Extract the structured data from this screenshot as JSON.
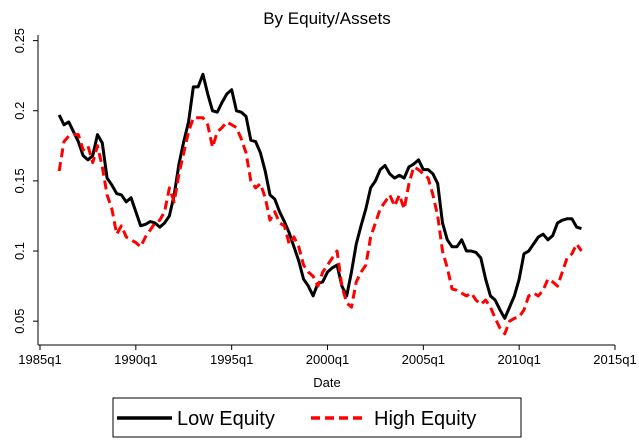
{
  "chart_data": {
    "type": "line",
    "title": "By Equity/Assets",
    "x_label": "Date",
    "x": [
      "1986q1",
      "1986q2",
      "1986q3",
      "1986q4",
      "1987q1",
      "1987q2",
      "1987q3",
      "1987q4",
      "1988q1",
      "1988q2",
      "1988q3",
      "1988q4",
      "1989q1",
      "1989q2",
      "1989q3",
      "1989q4",
      "1990q1",
      "1990q2",
      "1990q3",
      "1990q4",
      "1991q1",
      "1991q2",
      "1991q3",
      "1991q4",
      "1992q1",
      "1992q2",
      "1992q3",
      "1992q4",
      "1993q1",
      "1993q2",
      "1993q3",
      "1993q4",
      "1994q1",
      "1994q2",
      "1994q3",
      "1994q4",
      "1995q1",
      "1995q2",
      "1995q3",
      "1995q4",
      "1996q1",
      "1996q2",
      "1996q3",
      "1996q4",
      "1997q1",
      "1997q2",
      "1997q3",
      "1997q4",
      "1998q1",
      "1998q2",
      "1998q3",
      "1998q4",
      "1999q1",
      "1999q2",
      "1999q3",
      "1999q4",
      "2000q1",
      "2000q2",
      "2000q3",
      "2000q4",
      "2001q1",
      "2001q2",
      "2001q3",
      "2001q4",
      "2002q1",
      "2002q2",
      "2002q3",
      "2002q4",
      "2003q1",
      "2003q2",
      "2003q3",
      "2003q4",
      "2004q1",
      "2004q2",
      "2004q3",
      "2004q4",
      "2005q1",
      "2005q2",
      "2005q3",
      "2005q4",
      "2006q1",
      "2006q2",
      "2006q3",
      "2006q4",
      "2007q1",
      "2007q2",
      "2007q3",
      "2007q4",
      "2008q1",
      "2008q2",
      "2008q3",
      "2008q4",
      "2009q1",
      "2009q2",
      "2009q3",
      "2009q4",
      "2010q1",
      "2010q2",
      "2010q3",
      "2010q4",
      "2011q1",
      "2011q2",
      "2011q3",
      "2011q4",
      "2012q1",
      "2012q2",
      "2012q3",
      "2012q4",
      "2013q1",
      "2013q2"
    ],
    "series": [
      {
        "name": "Low Equity",
        "color": "#000000",
        "dash": "solid",
        "values": [
          0.197,
          0.19,
          0.192,
          0.185,
          0.178,
          0.168,
          0.165,
          0.168,
          0.183,
          0.177,
          0.152,
          0.147,
          0.141,
          0.14,
          0.135,
          0.138,
          0.128,
          0.118,
          0.119,
          0.121,
          0.12,
          0.117,
          0.12,
          0.125,
          0.14,
          0.162,
          0.178,
          0.192,
          0.217,
          0.217,
          0.226,
          0.212,
          0.2,
          0.199,
          0.206,
          0.212,
          0.215,
          0.2,
          0.199,
          0.196,
          0.179,
          0.178,
          0.17,
          0.157,
          0.14,
          0.137,
          0.128,
          0.121,
          0.113,
          0.103,
          0.093,
          0.08,
          0.075,
          0.068,
          0.077,
          0.078,
          0.085,
          0.088,
          0.09,
          0.075,
          0.068,
          0.085,
          0.105,
          0.118,
          0.13,
          0.145,
          0.15,
          0.158,
          0.161,
          0.155,
          0.152,
          0.154,
          0.152,
          0.16,
          0.162,
          0.165,
          0.158,
          0.158,
          0.155,
          0.148,
          0.12,
          0.108,
          0.103,
          0.103,
          0.108,
          0.1,
          0.1,
          0.099,
          0.095,
          0.08,
          0.068,
          0.065,
          0.058,
          0.052,
          0.06,
          0.068,
          0.08,
          0.098,
          0.1,
          0.105,
          0.11,
          0.112,
          0.108,
          0.111,
          0.12,
          0.122,
          0.123,
          0.123,
          0.117,
          0.116
        ]
      },
      {
        "name": "High Equity",
        "color": "#ff0000",
        "dash": "dashed",
        "values": [
          0.157,
          0.178,
          0.182,
          0.183,
          0.183,
          0.172,
          0.175,
          0.163,
          0.175,
          0.16,
          0.14,
          0.13,
          0.112,
          0.118,
          0.11,
          0.108,
          0.106,
          0.103,
          0.11,
          0.115,
          0.12,
          0.122,
          0.128,
          0.145,
          0.135,
          0.155,
          0.17,
          0.185,
          0.195,
          0.195,
          0.195,
          0.19,
          0.174,
          0.185,
          0.188,
          0.192,
          0.19,
          0.188,
          0.18,
          0.17,
          0.15,
          0.145,
          0.148,
          0.138,
          0.122,
          0.128,
          0.12,
          0.118,
          0.105,
          0.11,
          0.103,
          0.09,
          0.085,
          0.082,
          0.075,
          0.085,
          0.09,
          0.095,
          0.1,
          0.075,
          0.063,
          0.06,
          0.078,
          0.085,
          0.09,
          0.11,
          0.12,
          0.13,
          0.135,
          0.14,
          0.132,
          0.14,
          0.13,
          0.148,
          0.16,
          0.158,
          0.155,
          0.152,
          0.14,
          0.125,
          0.1,
          0.088,
          0.073,
          0.072,
          0.07,
          0.068,
          0.07,
          0.065,
          0.062,
          0.065,
          0.06,
          0.052,
          0.045,
          0.041,
          0.05,
          0.052,
          0.053,
          0.058,
          0.068,
          0.07,
          0.068,
          0.072,
          0.08,
          0.078,
          0.075,
          0.085,
          0.095,
          0.098,
          0.105,
          0.1
        ]
      }
    ],
    "xlim": [
      "1985q1",
      "2015q1"
    ],
    "xticks": [
      "1985q1",
      "1990q1",
      "1995q1",
      "2000q1",
      "2005q1",
      "2010q1",
      "2015q1"
    ],
    "ylim": [
      0.033,
      0.254
    ],
    "yticks": [
      0.05,
      0.1,
      0.15,
      0.2,
      0.25
    ],
    "grid": false,
    "legend": "bottom"
  }
}
